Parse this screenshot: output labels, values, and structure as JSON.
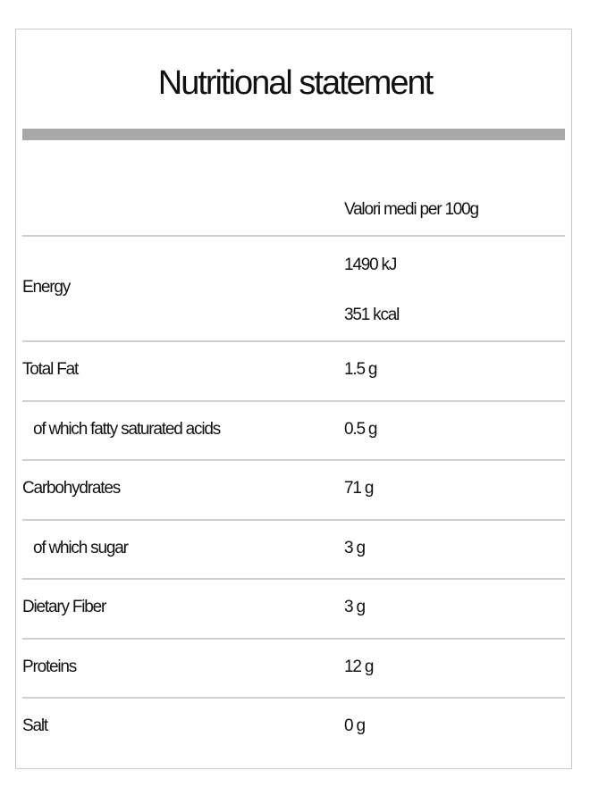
{
  "title": "Nutritional statement",
  "table": {
    "header": "Valori medi per 100g",
    "rows": [
      {
        "label": "Energy",
        "values": [
          "1490 kJ",
          "351 kcal"
        ]
      },
      {
        "label": "Total Fat",
        "values": [
          "1.5 g"
        ]
      },
      {
        "label": "of which fatty saturated acids",
        "values": [
          "0.5 g"
        ]
      },
      {
        "label": "Carbohydrates",
        "values": [
          "71 g"
        ]
      },
      {
        "label": "of which sugar",
        "values": [
          "3 g"
        ]
      },
      {
        "label": "Dietary Fiber",
        "values": [
          "3 g"
        ]
      },
      {
        "label": "Proteins",
        "values": [
          "12 g"
        ]
      },
      {
        "label": "Salt",
        "values": [
          "0 g"
        ]
      }
    ]
  }
}
